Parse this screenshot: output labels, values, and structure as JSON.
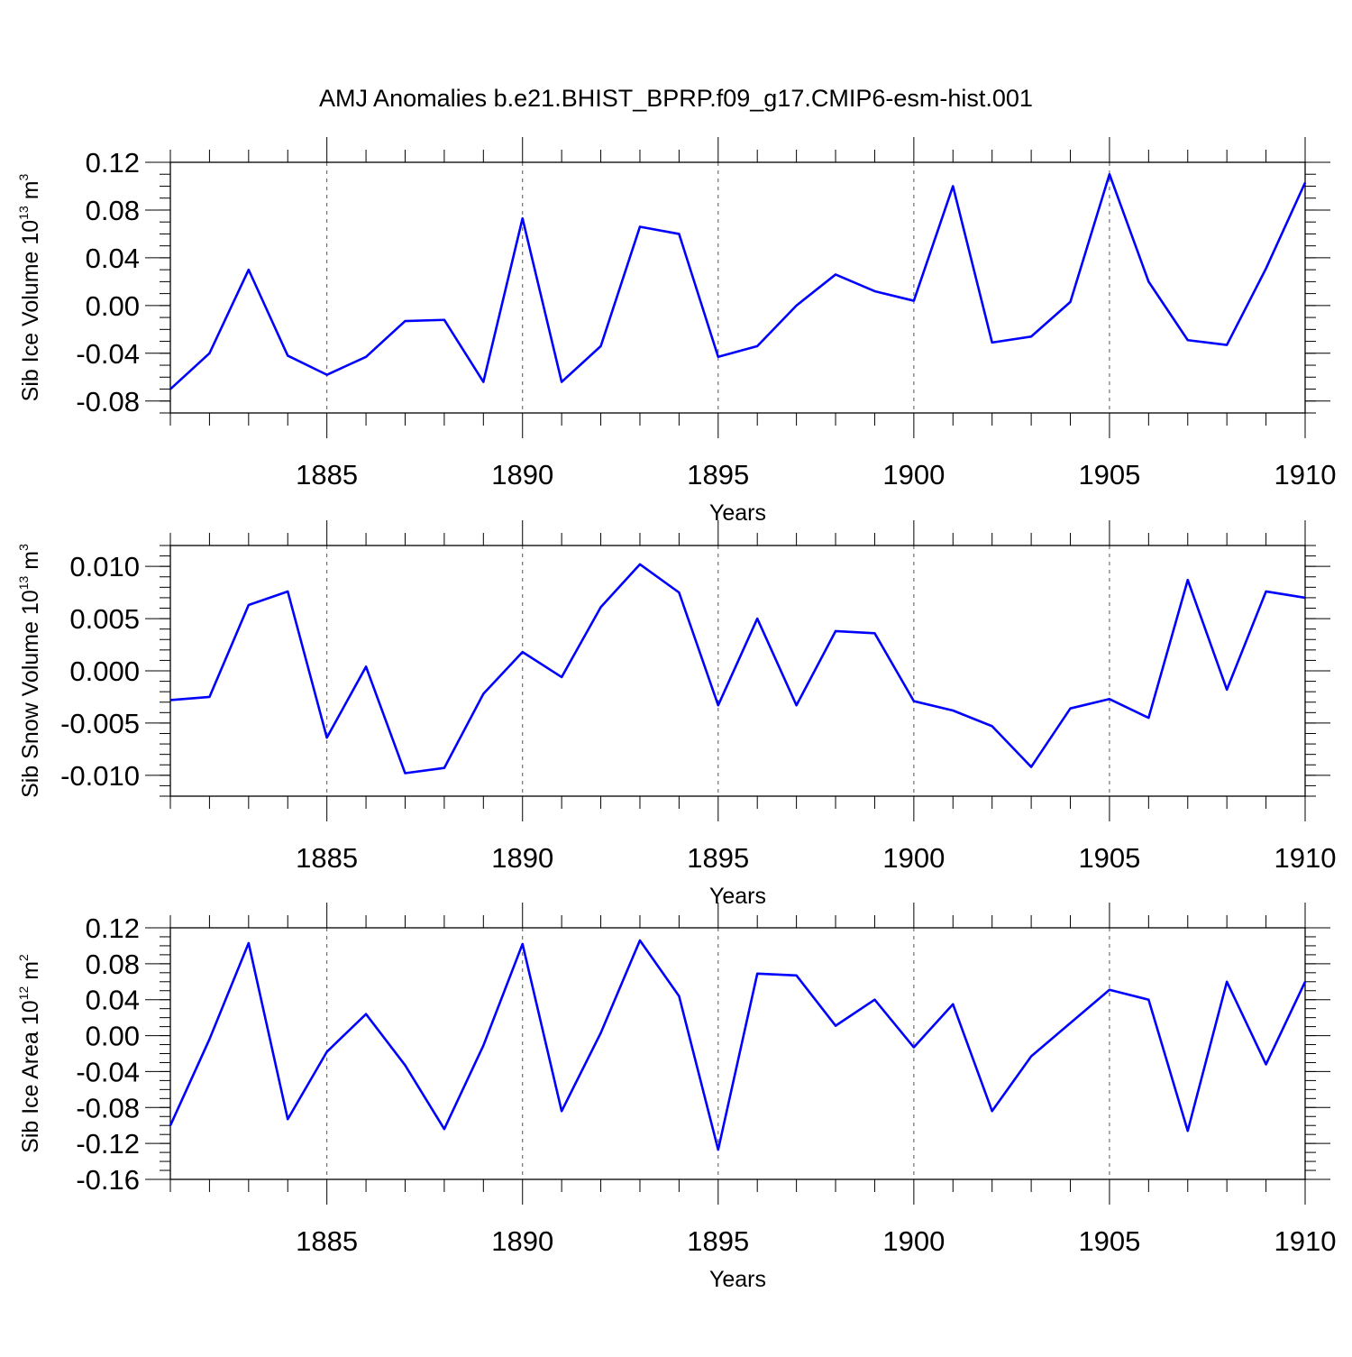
{
  "chart_data": [
    {
      "type": "line",
      "title": "AMJ Anomalies b.e21.BHIST_BPRP.f09_g17.CMIP6-esm-hist.001",
      "ylabel": {
        "pre": "Sib Ice Volume 10",
        "exp": "13",
        "unit": " m",
        "unit_exp": "3"
      },
      "xlabel": "Years",
      "x": [
        1881,
        1882,
        1883,
        1884,
        1885,
        1886,
        1887,
        1888,
        1889,
        1890,
        1891,
        1892,
        1893,
        1894,
        1895,
        1896,
        1897,
        1898,
        1899,
        1900,
        1901,
        1902,
        1903,
        1904,
        1905,
        1906,
        1907,
        1908,
        1909,
        1910
      ],
      "series": [
        {
          "name": "Sib Ice Volume",
          "color": "#0000ff",
          "values": [
            -0.07,
            -0.04,
            0.03,
            -0.042,
            -0.058,
            -0.043,
            -0.013,
            -0.012,
            -0.064,
            0.073,
            -0.064,
            -0.034,
            0.066,
            0.06,
            -0.043,
            -0.034,
            0.0,
            0.026,
            0.012,
            0.004,
            0.1,
            -0.031,
            -0.026,
            0.003,
            0.11,
            0.02,
            -0.029,
            -0.033,
            0.031,
            0.103
          ]
        }
      ],
      "xlim": [
        1881,
        1910
      ],
      "ylim": [
        -0.09,
        0.12
      ],
      "yticks": [
        -0.08,
        -0.04,
        0.0,
        0.04,
        0.08,
        0.12
      ],
      "ytick_labels": [
        "-0.08",
        "-0.04",
        "0.00",
        "0.04",
        "0.08",
        "0.12"
      ],
      "yminor_step": 0.01,
      "xticks": [
        1885,
        1890,
        1895,
        1900,
        1905,
        1910
      ],
      "xtick_labels": [
        "1885",
        "1890",
        "1895",
        "1900",
        "1905",
        "1910"
      ],
      "xgrid": "dashed at major ticks"
    },
    {
      "type": "line",
      "ylabel": {
        "pre": "Sib Snow Volume 10",
        "exp": "13",
        "unit": " m",
        "unit_exp": "3"
      },
      "xlabel": "Years",
      "x": [
        1881,
        1882,
        1883,
        1884,
        1885,
        1886,
        1887,
        1888,
        1889,
        1890,
        1891,
        1892,
        1893,
        1894,
        1895,
        1896,
        1897,
        1898,
        1899,
        1900,
        1901,
        1902,
        1903,
        1904,
        1905,
        1906,
        1907,
        1908,
        1909,
        1910
      ],
      "series": [
        {
          "name": "Sib Snow Volume",
          "color": "#0000ff",
          "values": [
            -0.0028,
            -0.0025,
            0.0063,
            0.0076,
            -0.0064,
            0.0004,
            -0.0098,
            -0.0093,
            -0.0022,
            0.0018,
            -0.0006,
            0.0061,
            0.0102,
            0.0075,
            -0.0033,
            0.005,
            -0.0033,
            0.0038,
            0.0036,
            -0.0029,
            -0.0038,
            -0.0053,
            -0.0092,
            -0.0036,
            -0.0027,
            -0.0045,
            0.0087,
            -0.0018,
            0.0076,
            0.007
          ]
        }
      ],
      "xlim": [
        1881,
        1910
      ],
      "ylim": [
        -0.012,
        0.012
      ],
      "yticks": [
        -0.01,
        -0.005,
        0.0,
        0.005,
        0.01
      ],
      "ytick_labels": [
        "-0.010",
        "-0.005",
        "0.000",
        "0.005",
        "0.010"
      ],
      "yminor_step": 0.001,
      "xticks": [
        1885,
        1890,
        1895,
        1900,
        1905,
        1910
      ],
      "xtick_labels": [
        "1885",
        "1890",
        "1895",
        "1900",
        "1905",
        "1910"
      ],
      "xgrid": "dashed at major ticks"
    },
    {
      "type": "line",
      "ylabel": {
        "pre": "Sib Ice Area 10",
        "exp": "12",
        "unit": " m",
        "unit_exp": "2"
      },
      "xlabel": "Years",
      "x": [
        1881,
        1882,
        1883,
        1884,
        1885,
        1886,
        1887,
        1888,
        1889,
        1890,
        1891,
        1892,
        1893,
        1894,
        1895,
        1896,
        1897,
        1898,
        1899,
        1900,
        1901,
        1902,
        1903,
        1904,
        1905,
        1906,
        1907,
        1908,
        1909,
        1910
      ],
      "series": [
        {
          "name": "Sib Ice Area",
          "color": "#0000ff",
          "values": [
            -0.1,
            -0.004,
            0.103,
            -0.093,
            -0.018,
            0.024,
            -0.033,
            -0.104,
            -0.011,
            0.102,
            -0.084,
            0.003,
            0.106,
            0.044,
            -0.127,
            0.069,
            0.067,
            0.011,
            0.04,
            -0.013,
            0.035,
            -0.084,
            -0.023,
            0.014,
            0.051,
            0.04,
            -0.106,
            0.06,
            -0.032,
            0.06
          ]
        }
      ],
      "xlim": [
        1881,
        1910
      ],
      "ylim": [
        -0.16,
        0.12
      ],
      "yticks": [
        -0.16,
        -0.12,
        -0.08,
        -0.04,
        0.0,
        0.04,
        0.08,
        0.12
      ],
      "ytick_labels": [
        "-0.16",
        "-0.12",
        "-0.08",
        "-0.04",
        "0.00",
        "0.04",
        "0.08",
        "0.12"
      ],
      "yminor_step": 0.01,
      "xticks": [
        1885,
        1890,
        1895,
        1900,
        1905,
        1910
      ],
      "xtick_labels": [
        "1885",
        "1890",
        "1895",
        "1900",
        "1905",
        "1910"
      ],
      "xgrid": "dashed at major ticks"
    }
  ]
}
